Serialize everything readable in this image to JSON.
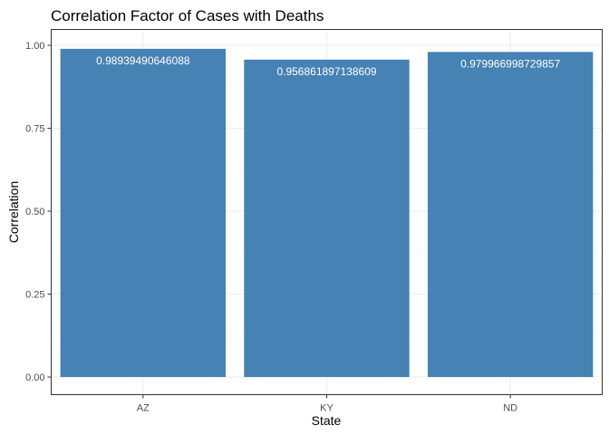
{
  "chart_data": {
    "type": "bar",
    "title": "Correlation Factor of Cases with Deaths",
    "xlabel": "State",
    "ylabel": "Correlation",
    "categories": [
      "AZ",
      "KY",
      "ND"
    ],
    "values": [
      0.98939490646088,
      0.956861897138609,
      0.979966998729857
    ],
    "value_labels": [
      "0.98939490646088",
      "0.956861897138609",
      "0.979966998729857"
    ],
    "ylim": [
      0,
      1
    ],
    "yticks": [
      0.0,
      0.25,
      0.5,
      0.75,
      1.0
    ],
    "ytick_labels": [
      "0.00",
      "0.25",
      "0.50",
      "0.75",
      "1.00"
    ],
    "bar_color": "#4682b4",
    "grid": true,
    "legend": "none"
  }
}
